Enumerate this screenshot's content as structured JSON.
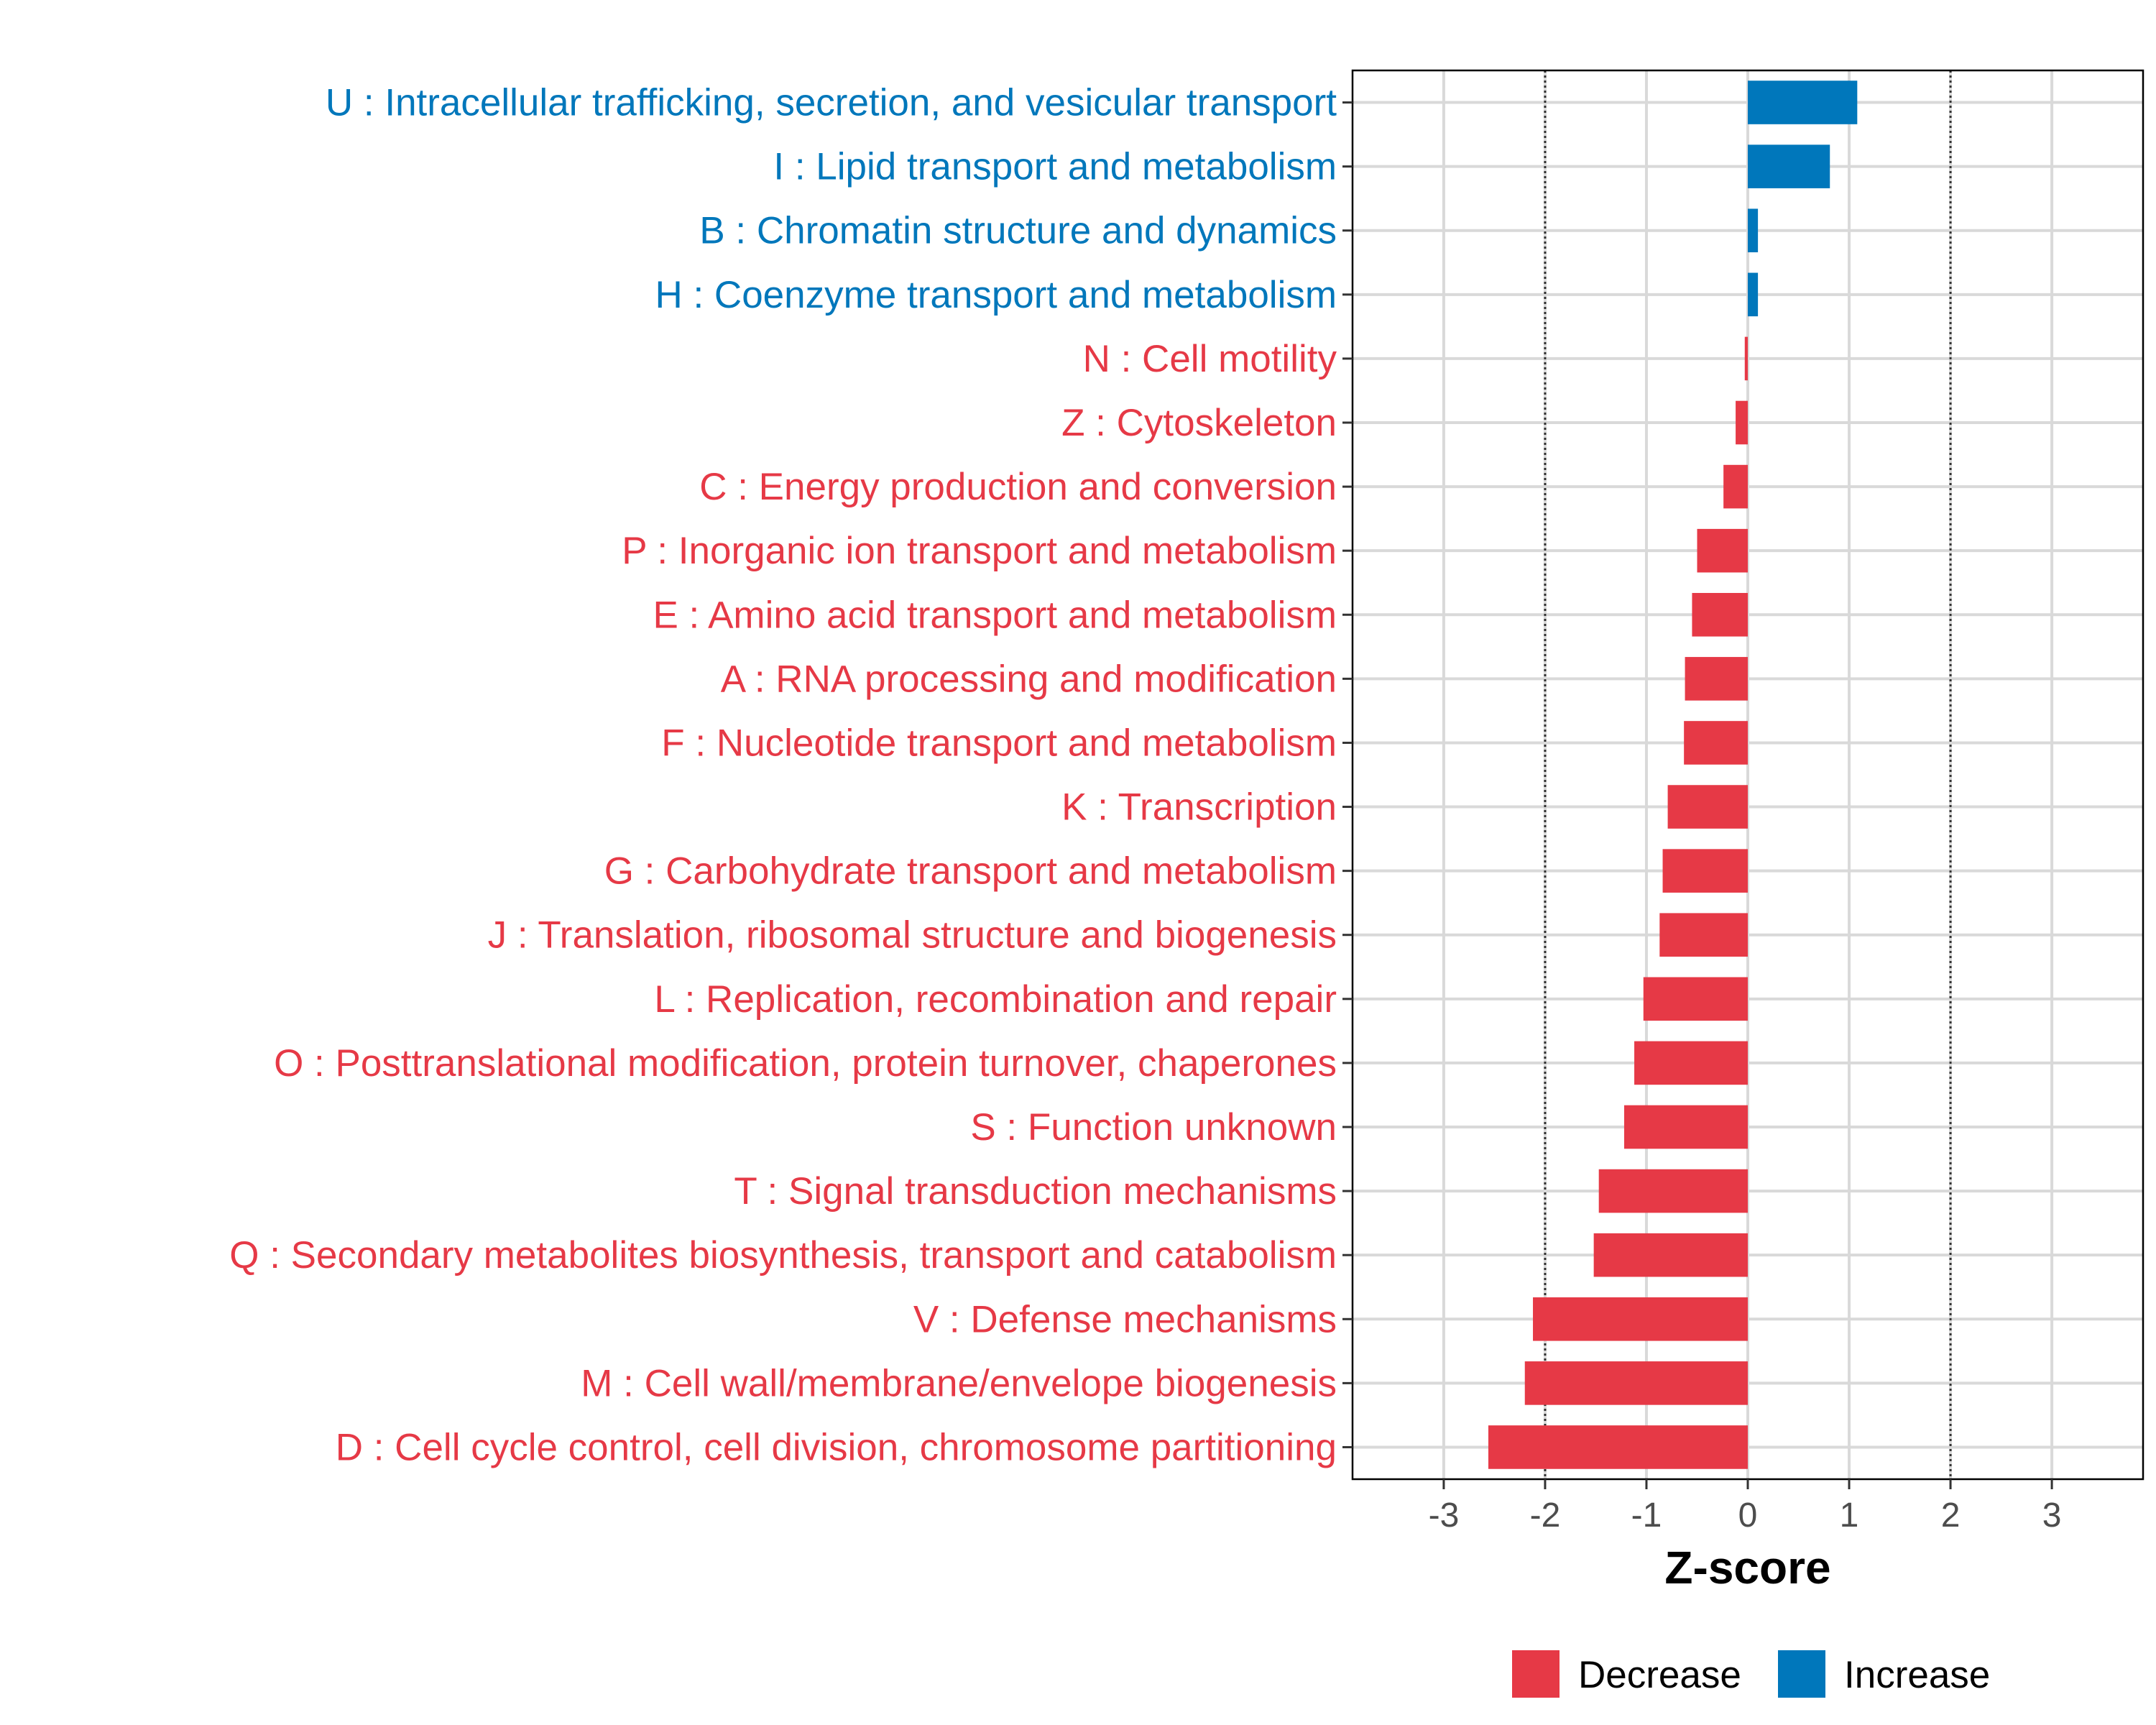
{
  "chart_data": {
    "type": "bar",
    "orientation": "horizontal",
    "xlabel": "Z-score",
    "xlim": [
      -3.9,
      3.9
    ],
    "xticks": [
      -3,
      -2,
      -1,
      0,
      1,
      2,
      3
    ],
    "tick_labels": [
      "-3",
      "-2",
      "-1",
      "0",
      "1",
      "2",
      "3"
    ],
    "reference_lines": [
      -2,
      2
    ],
    "grid": true,
    "legend_position": "bottom",
    "colors": {
      "Decrease": "#e63946",
      "Increase": "#0077bb"
    },
    "legend": [
      {
        "label": "Decrease",
        "color": "#e63946"
      },
      {
        "label": "Increase",
        "color": "#0077bb"
      }
    ],
    "categories": [
      "U : Intracellular trafficking, secretion, and vesicular transport",
      "I : Lipid transport and metabolism",
      "B : Chromatin structure and dynamics",
      "H : Coenzyme transport and metabolism",
      "N : Cell motility",
      "Z : Cytoskeleton",
      "C : Energy production and conversion",
      "P : Inorganic ion transport and metabolism",
      "E : Amino acid transport and metabolism",
      "A : RNA processing and modification",
      "F : Nucleotide transport and metabolism",
      "K : Transcription",
      "G : Carbohydrate transport and metabolism",
      "J : Translation, ribosomal structure and biogenesis",
      "L : Replication, recombination and repair",
      "O : Posttranslational modification, protein turnover, chaperones",
      "S : Function unknown",
      "T : Signal transduction mechanisms",
      "Q : Secondary metabolites biosynthesis, transport and catabolism",
      "V : Defense mechanisms",
      "M : Cell wall/membrane/envelope biogenesis",
      "D : Cell cycle control, cell division, chromosome partitioning"
    ],
    "values": [
      1.08,
      0.81,
      0.1,
      0.1,
      -0.03,
      -0.12,
      -0.24,
      -0.5,
      -0.55,
      -0.62,
      -0.63,
      -0.79,
      -0.84,
      -0.87,
      -1.03,
      -1.12,
      -1.22,
      -1.47,
      -1.52,
      -2.12,
      -2.2,
      -2.56
    ],
    "direction": [
      "Increase",
      "Increase",
      "Increase",
      "Increase",
      "Decrease",
      "Decrease",
      "Decrease",
      "Decrease",
      "Decrease",
      "Decrease",
      "Decrease",
      "Decrease",
      "Decrease",
      "Decrease",
      "Decrease",
      "Decrease",
      "Decrease",
      "Decrease",
      "Decrease",
      "Decrease",
      "Decrease",
      "Decrease"
    ]
  }
}
